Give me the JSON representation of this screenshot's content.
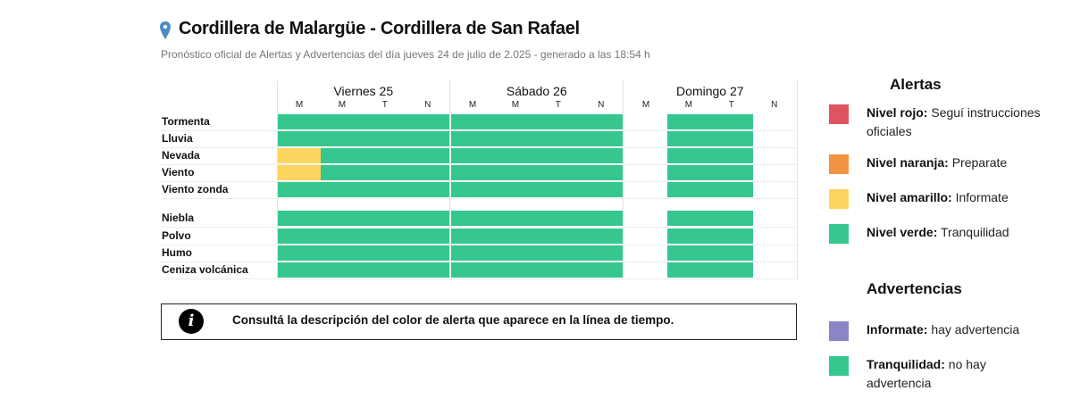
{
  "header": {
    "title": "Cordillera de Malargüe - Cordillera de San Rafael",
    "subtitle": "Pronóstico oficial de Alertas y Advertencias del día jueves 24 de julio de 2.025 - generado a las 18:54 h",
    "icon": "map-pin-icon"
  },
  "colors": {
    "rojo": "#de5463",
    "naranja": "#f29342",
    "amarillo": "#fdd45e",
    "verde": "#36c78f",
    "violeta": "#8a86c6"
  },
  "timeline": {
    "days": [
      {
        "name": "Viernes 25",
        "slots": [
          "M",
          "M",
          "T",
          "N"
        ]
      },
      {
        "name": "Sábado 26",
        "slots": [
          "M",
          "M",
          "T",
          "N"
        ]
      },
      {
        "name": "Domingo 27",
        "slots": [
          "M",
          "M",
          "T",
          "N"
        ]
      }
    ],
    "rows": [
      {
        "label": "Tormenta",
        "levels": [
          [
            "verde",
            "verde",
            "verde",
            "verde"
          ],
          [
            "verde",
            "verde",
            "verde",
            "verde"
          ],
          [
            null,
            "verde",
            "verde",
            null
          ]
        ]
      },
      {
        "label": "Lluvia",
        "levels": [
          [
            "verde",
            "verde",
            "verde",
            "verde"
          ],
          [
            "verde",
            "verde",
            "verde",
            "verde"
          ],
          [
            null,
            "verde",
            "verde",
            null
          ]
        ]
      },
      {
        "label": "Nevada",
        "levels": [
          [
            "amarillo",
            "verde",
            "verde",
            "verde"
          ],
          [
            "verde",
            "verde",
            "verde",
            "verde"
          ],
          [
            null,
            "verde",
            "verde",
            null
          ]
        ]
      },
      {
        "label": "Viento",
        "levels": [
          [
            "amarillo",
            "verde",
            "verde",
            "verde"
          ],
          [
            "verde",
            "verde",
            "verde",
            "verde"
          ],
          [
            null,
            "verde",
            "verde",
            null
          ]
        ]
      },
      {
        "label": "Viento zonda",
        "levels": [
          [
            "verde",
            "verde",
            "verde",
            "verde"
          ],
          [
            "verde",
            "verde",
            "verde",
            "verde"
          ],
          [
            null,
            "verde",
            "verde",
            null
          ]
        ]
      },
      {
        "label": "Niebla",
        "levels": [
          [
            "verde",
            "verde",
            "verde",
            "verde"
          ],
          [
            "verde",
            "verde",
            "verde",
            "verde"
          ],
          [
            null,
            "verde",
            "verde",
            null
          ]
        ]
      },
      {
        "label": "Polvo",
        "levels": [
          [
            "verde",
            "verde",
            "verde",
            "verde"
          ],
          [
            "verde",
            "verde",
            "verde",
            "verde"
          ],
          [
            null,
            "verde",
            "verde",
            null
          ]
        ]
      },
      {
        "label": "Humo",
        "levels": [
          [
            "verde",
            "verde",
            "verde",
            "verde"
          ],
          [
            "verde",
            "verde",
            "verde",
            "verde"
          ],
          [
            null,
            "verde",
            "verde",
            null
          ]
        ]
      },
      {
        "label": "Ceniza volcánica",
        "levels": [
          [
            "verde",
            "verde",
            "verde",
            "verde"
          ],
          [
            "verde",
            "verde",
            "verde",
            "verde"
          ],
          [
            null,
            "verde",
            "verde",
            null
          ]
        ]
      }
    ]
  },
  "info": {
    "icon": "info-icon",
    "glyph": "i",
    "text": "Consultá la descripción del color de alerta que aparece en la línea de tiempo."
  },
  "legend": {
    "alertas_title": "Alertas",
    "alertas": [
      {
        "key": "rojo",
        "bold": "Nivel rojo:",
        "text": " Seguí instrucciones oficiales"
      },
      {
        "key": "naranja",
        "bold": "Nivel naranja:",
        "text": " Preparate"
      },
      {
        "key": "amarillo",
        "bold": "Nivel amarillo:",
        "text": " Informate"
      },
      {
        "key": "verde",
        "bold": "Nivel verde:",
        "text": " Tranquilidad"
      }
    ],
    "advertencias_title": "Advertencias",
    "advertencias": [
      {
        "key": "violeta",
        "bold": "Informate:",
        "text": " hay advertencia"
      },
      {
        "key": "verde",
        "bold": "Tranquilidad:",
        "text": " no hay advertencia"
      }
    ]
  }
}
